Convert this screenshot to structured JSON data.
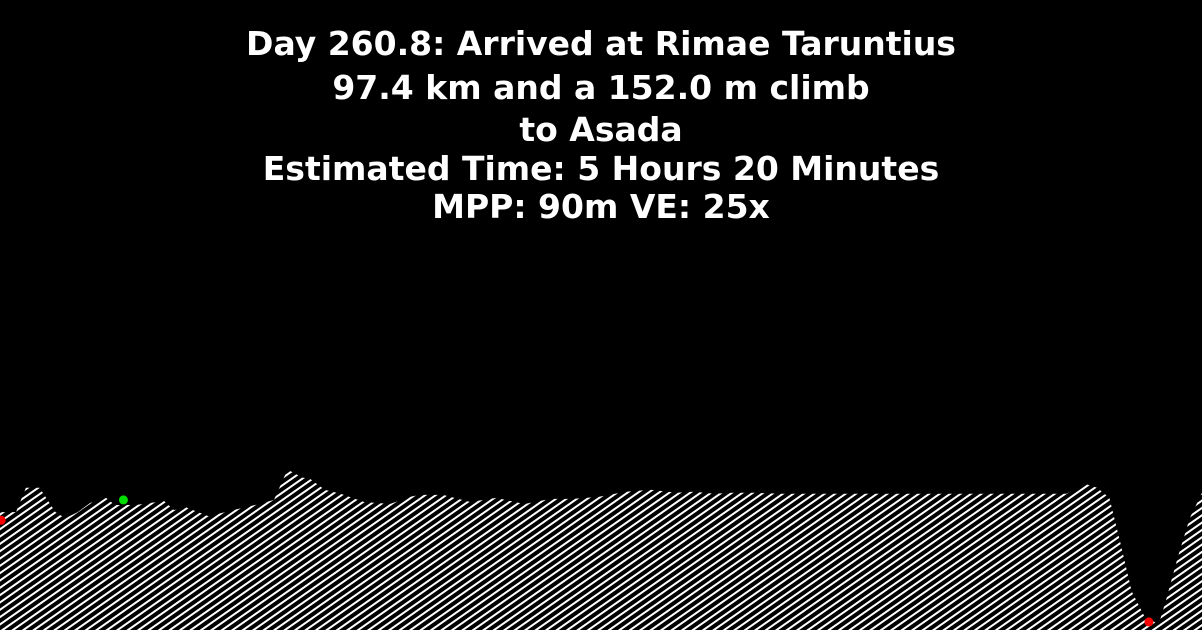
{
  "header": {
    "line1": "Day 260.8: Arrived at Rimae Taruntius",
    "line2": "97.4 km and a 152.0 m climb",
    "line3": "to Asada",
    "line4": "Estimated Time: 5 Hours 20 Minutes",
    "line5": "MPP: 90m VE: 25x"
  },
  "colors": {
    "background": "#000000",
    "text": "#ffffff",
    "terrain_hatch": "#ffffff",
    "start_marker": "#ff0000",
    "end_marker": "#ff0000",
    "waypoint_marker": "#00dd00"
  },
  "chart_data": {
    "type": "area",
    "title": "",
    "xlabel": "",
    "ylabel": "",
    "x_unit": "km",
    "y_unit": "m",
    "x": [
      0,
      1.3,
      2.1,
      3.2,
      4.5,
      5.3,
      6.3,
      7.3,
      8.6,
      9.3,
      11,
      13.3,
      14.1,
      15,
      16.9,
      18.9,
      21,
      22.2,
      23.3,
      24.5,
      25.1,
      26.3,
      27.6,
      29.5,
      31.6,
      33.2,
      34,
      35.9,
      38.1,
      40.2,
      42.5,
      44.6,
      46.4,
      48.5,
      50.7,
      52.7,
      54.8,
      56.2,
      57.9,
      59.4,
      61.1,
      63.4,
      65.7,
      68.1,
      70.6,
      73.1,
      75.2,
      77.6,
      79.8,
      82.1,
      84.4,
      86.4,
      87.9,
      88.9,
      89.9,
      90.8,
      91.7,
      92.8,
      93.9,
      94.5,
      95.4,
      96.4,
      97.4
    ],
    "elevation": [
      96,
      96,
      120,
      120,
      96,
      90,
      96,
      105,
      110,
      103,
      103,
      107,
      98,
      101,
      92,
      98,
      104,
      108,
      138,
      130,
      129,
      118,
      114,
      106,
      104,
      111,
      113,
      113,
      106,
      110,
      104,
      109,
      109,
      111,
      116,
      118,
      115,
      116,
      114,
      115,
      115,
      114,
      114,
      114,
      114,
      114,
      114,
      114,
      114,
      114,
      114,
      114,
      124,
      120,
      110,
      65,
      18,
      -8,
      -14,
      10,
      50,
      90,
      115
    ],
    "markers": [
      {
        "kind": "start",
        "x": 0.1,
        "elevation": 88
      },
      {
        "kind": "waypoint",
        "x": 10.0,
        "elevation": 108
      },
      {
        "kind": "end",
        "x": 93.1,
        "elevation": -12
      }
    ],
    "ylim": [
      -20,
      600
    ],
    "grid": false,
    "legend": "none"
  }
}
